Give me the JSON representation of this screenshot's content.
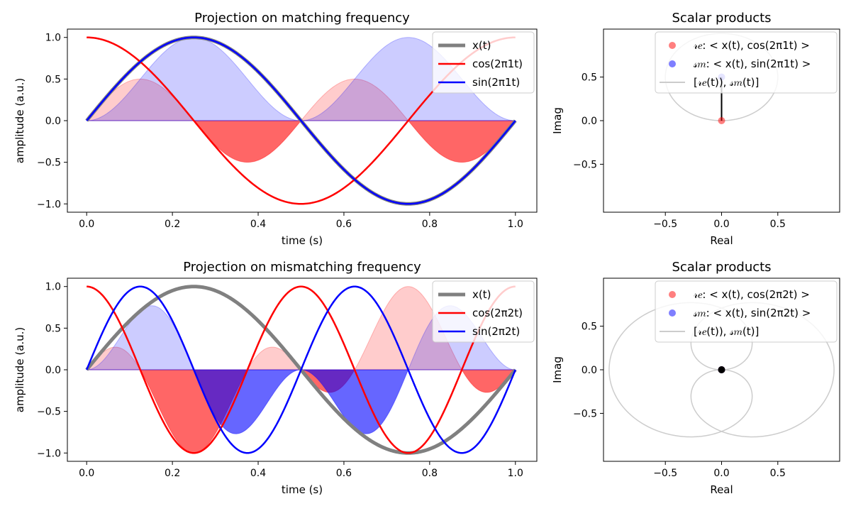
{
  "chart_data": [
    {
      "type": "line",
      "title": "Projection on matching frequency",
      "xlabel": "time (s)",
      "ylabel": "amplitude (a.u.)",
      "xlim": [
        -0.045,
        1.05
      ],
      "ylim": [
        -1.1,
        1.1
      ],
      "xticks": [
        0.0,
        0.2,
        0.4,
        0.6,
        0.8,
        1.0
      ],
      "xtick_labels": [
        "0.0",
        "0.2",
        "0.4",
        "0.6",
        "0.8",
        "1.0"
      ],
      "yticks": [
        1.0,
        0.5,
        0.0,
        -0.5,
        -1.0
      ],
      "ytick_labels": [
        "1.0",
        "0.5",
        "0.0",
        "−0.5",
        "−1.0"
      ],
      "grid": false,
      "legend_position": "top-right",
      "signal_frequency": 1,
      "basis_frequency": 1,
      "series": [
        {
          "name": "x(t)",
          "function": "sin(2π·1·t)",
          "color": "#808080"
        },
        {
          "name": "cos(2π1t)",
          "function": "cos(2π·1·t)",
          "color": "#ff0000"
        },
        {
          "name": "sin(2π1t)",
          "function": "sin(2π·1·t)",
          "color": "#0000ff"
        }
      ],
      "fills": [
        {
          "name": "x(t)·cos(2π1t)",
          "color": "#ff0000"
        },
        {
          "name": "x(t)·sin(2π1t)",
          "color": "#0000ff"
        }
      ]
    },
    {
      "type": "scatter",
      "title": "Scalar products",
      "xlabel": "Real",
      "ylabel": "Imag",
      "xlim": [
        -1.05,
        1.05
      ],
      "ylim": [
        -1.05,
        1.05
      ],
      "xticks": [
        -0.5,
        0.0,
        0.5
      ],
      "xtick_labels": [
        "−0.5",
        "0.0",
        "0.5"
      ],
      "yticks": [
        0.5,
        0.0,
        -0.5
      ],
      "ytick_labels": [
        "0.5",
        "0.0",
        "−0.5"
      ],
      "legend_position": "top-right",
      "legend": [
        {
          "label": "𝓇𝑒: < x(t), cos(2π1t) >",
          "color": "#ff0000",
          "marker": "circle"
        },
        {
          "label": "𝓈𝑚: < x(t), sin(2π1t) >",
          "color": "#0000ff",
          "marker": "circle"
        },
        {
          "label": "[𝓇𝑒(t)), 𝓈𝑚(t)]",
          "color": "#cccccc",
          "marker": "line"
        }
      ],
      "points": [
        {
          "name": "Re",
          "x": 0.0,
          "y": 0.0
        },
        {
          "name": "Im",
          "x": 0.0,
          "y": 0.5
        }
      ],
      "segment": {
        "from": [
          0.0,
          0.0
        ],
        "to": [
          0.0,
          0.5
        ]
      }
    },
    {
      "type": "line",
      "title": "Projection on mismatching frequency",
      "xlabel": "time (s)",
      "ylabel": "amplitude (a.u.)",
      "xlim": [
        -0.045,
        1.05
      ],
      "ylim": [
        -1.1,
        1.1
      ],
      "xticks": [
        0.0,
        0.2,
        0.4,
        0.6,
        0.8,
        1.0
      ],
      "xtick_labels": [
        "0.0",
        "0.2",
        "0.4",
        "0.6",
        "0.8",
        "1.0"
      ],
      "yticks": [
        1.0,
        0.5,
        0.0,
        -0.5,
        -1.0
      ],
      "ytick_labels": [
        "1.0",
        "0.5",
        "0.0",
        "−0.5",
        "−1.0"
      ],
      "grid": false,
      "legend_position": "top-right",
      "signal_frequency": 1,
      "basis_frequency": 2,
      "series": [
        {
          "name": "x(t)",
          "function": "sin(2π·1·t)",
          "color": "#808080"
        },
        {
          "name": "cos(2π2t)",
          "function": "cos(2π·2·t)",
          "color": "#ff0000"
        },
        {
          "name": "sin(2π2t)",
          "function": "sin(2π·2·t)",
          "color": "#0000ff"
        }
      ],
      "fills": [
        {
          "name": "x(t)·cos(2π2t)",
          "color": "#ff0000"
        },
        {
          "name": "x(t)·sin(2π2t)",
          "color": "#0000ff"
        }
      ]
    },
    {
      "type": "scatter",
      "title": "Scalar products",
      "xlabel": "Real",
      "ylabel": "Imag",
      "xlim": [
        -1.05,
        1.05
      ],
      "ylim": [
        -1.05,
        1.05
      ],
      "xticks": [
        -0.5,
        0.0,
        0.5
      ],
      "xtick_labels": [
        "−0.5",
        "0.0",
        "0.5"
      ],
      "yticks": [
        0.5,
        0.0,
        -0.5
      ],
      "ytick_labels": [
        "0.5",
        "0.0",
        "−0.5"
      ],
      "legend_position": "top-right",
      "legend": [
        {
          "label": "𝓇𝑒: < x(t), cos(2π2t) >",
          "color": "#ff0000",
          "marker": "circle"
        },
        {
          "label": "𝓈𝑚: < x(t), sin(2π2t) >",
          "color": "#0000ff",
          "marker": "circle"
        },
        {
          "label": "[𝓇𝑒(t)), 𝓈𝑚(t)]",
          "color": "#cccccc",
          "marker": "line"
        }
      ],
      "points": [
        {
          "name": "Re",
          "x": 0.0,
          "y": 0.0
        },
        {
          "name": "Im",
          "x": 0.0,
          "y": 0.0
        }
      ],
      "segment": {
        "from": [
          0.0,
          0.0
        ],
        "to": [
          0.0,
          0.0
        ]
      }
    }
  ]
}
